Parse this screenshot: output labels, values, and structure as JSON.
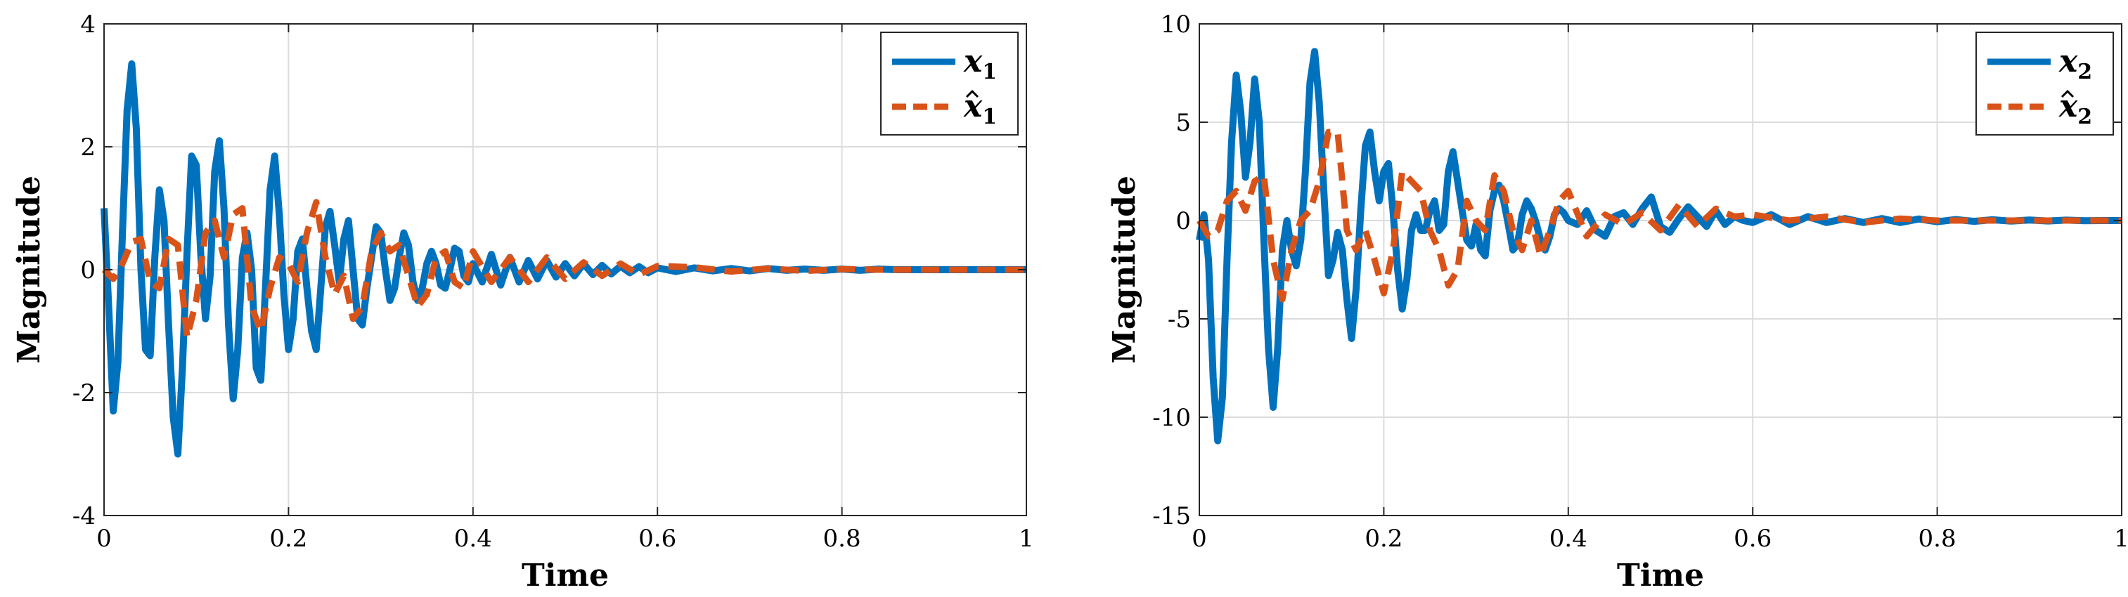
{
  "chart_data": [
    {
      "type": "line",
      "xlabel": "Time",
      "ylabel": "Magnitude",
      "xlim": [
        0,
        1
      ],
      "ylim": [
        -4,
        4
      ],
      "xticks": [
        0,
        0.2,
        0.4,
        0.6,
        0.8,
        1
      ],
      "xtick_labels": [
        "0",
        "0.2",
        "0.4",
        "0.6",
        "0.8",
        "1"
      ],
      "yticks": [
        -4,
        -2,
        0,
        2,
        4
      ],
      "ytick_labels": [
        "-4",
        "-2",
        "0",
        "2",
        "4"
      ],
      "grid": true,
      "legend_position": "top-right",
      "series": [
        {
          "name": "x1",
          "legend_base": "x",
          "legend_sub": "1",
          "hat": false,
          "style": "solid",
          "color": "#0072BD",
          "x": [
            0,
            0.005,
            0.01,
            0.015,
            0.02,
            0.025,
            0.03,
            0.035,
            0.04,
            0.045,
            0.05,
            0.055,
            0.06,
            0.065,
            0.07,
            0.075,
            0.08,
            0.085,
            0.09,
            0.095,
            0.1,
            0.105,
            0.11,
            0.115,
            0.12,
            0.125,
            0.13,
            0.135,
            0.14,
            0.145,
            0.15,
            0.155,
            0.16,
            0.165,
            0.17,
            0.175,
            0.18,
            0.185,
            0.19,
            0.195,
            0.2,
            0.205,
            0.21,
            0.215,
            0.22,
            0.225,
            0.23,
            0.235,
            0.24,
            0.245,
            0.25,
            0.255,
            0.26,
            0.265,
            0.27,
            0.275,
            0.28,
            0.285,
            0.29,
            0.295,
            0.3,
            0.305,
            0.31,
            0.315,
            0.32,
            0.325,
            0.33,
            0.335,
            0.34,
            0.345,
            0.35,
            0.355,
            0.36,
            0.365,
            0.37,
            0.375,
            0.38,
            0.385,
            0.39,
            0.395,
            0.4,
            0.41,
            0.42,
            0.43,
            0.44,
            0.45,
            0.46,
            0.47,
            0.48,
            0.49,
            0.5,
            0.51,
            0.52,
            0.53,
            0.54,
            0.55,
            0.56,
            0.57,
            0.58,
            0.59,
            0.6,
            0.62,
            0.64,
            0.66,
            0.68,
            0.7,
            0.72,
            0.74,
            0.76,
            0.78,
            0.8,
            0.82,
            0.84,
            0.86,
            0.88,
            0.9,
            0.92,
            0.94,
            0.96,
            0.98,
            1.0
          ],
          "y": [
            1.0,
            -0.6,
            -2.3,
            -1.5,
            0.6,
            2.6,
            3.35,
            2.3,
            0.0,
            -1.3,
            -1.4,
            0.2,
            1.3,
            0.8,
            -0.9,
            -2.4,
            -3.0,
            -1.6,
            0.3,
            1.85,
            1.7,
            0.2,
            -0.8,
            -0.1,
            1.6,
            2.1,
            1.0,
            -0.9,
            -2.1,
            -1.3,
            0.2,
            0.6,
            0.0,
            -1.6,
            -1.8,
            -0.3,
            1.3,
            1.85,
            0.9,
            -0.4,
            -1.3,
            -0.8,
            0.3,
            0.5,
            -0.3,
            -1.0,
            -1.3,
            -0.3,
            0.7,
            0.95,
            0.4,
            -0.2,
            0.5,
            0.8,
            0.0,
            -0.8,
            -0.9,
            -0.3,
            0.2,
            0.7,
            0.6,
            0.0,
            -0.5,
            -0.3,
            0.2,
            0.6,
            0.4,
            -0.2,
            -0.5,
            -0.3,
            0.1,
            0.3,
            0.1,
            -0.25,
            -0.3,
            0.0,
            0.35,
            0.3,
            -0.1,
            -0.2,
            0.1,
            -0.2,
            0.25,
            -0.25,
            0.2,
            -0.2,
            0.15,
            -0.15,
            0.15,
            -0.12,
            0.1,
            -0.1,
            0.1,
            -0.08,
            0.07,
            -0.07,
            0.06,
            -0.05,
            0.05,
            -0.05,
            0.03,
            -0.03,
            0.03,
            -0.02,
            0.02,
            -0.02,
            0.02,
            -0.01,
            0.01,
            -0.01,
            0.01,
            -0.01,
            0.01,
            0.0,
            0.0,
            0.0,
            0.0,
            0.0,
            0.0,
            0.0,
            0.0
          ]
        },
        {
          "name": "x1 estimate",
          "legend_base": "x",
          "legend_sub": "1",
          "hat": true,
          "style": "dashed",
          "color": "#D95319",
          "x": [
            0,
            0.01,
            0.02,
            0.03,
            0.04,
            0.05,
            0.06,
            0.07,
            0.08,
            0.09,
            0.1,
            0.11,
            0.12,
            0.13,
            0.14,
            0.15,
            0.16,
            0.17,
            0.18,
            0.19,
            0.2,
            0.21,
            0.22,
            0.23,
            0.24,
            0.25,
            0.26,
            0.27,
            0.28,
            0.29,
            0.3,
            0.31,
            0.32,
            0.33,
            0.34,
            0.35,
            0.36,
            0.37,
            0.38,
            0.39,
            0.4,
            0.42,
            0.44,
            0.46,
            0.48,
            0.5,
            0.52,
            0.54,
            0.56,
            0.58,
            0.6,
            0.64,
            0.68,
            0.72,
            0.76,
            0.8,
            0.84,
            0.88,
            0.92,
            0.96,
            1.0
          ],
          "y": [
            0.0,
            -0.15,
            0.1,
            0.45,
            0.5,
            -0.2,
            -0.3,
            0.5,
            0.4,
            -1.1,
            -0.5,
            0.6,
            0.8,
            0.2,
            0.9,
            1.0,
            -0.6,
            -1.0,
            -0.3,
            0.2,
            0.1,
            -0.2,
            0.6,
            1.1,
            0.2,
            -0.4,
            -0.1,
            -0.8,
            -0.6,
            0.3,
            0.6,
            0.3,
            0.4,
            -0.1,
            -0.6,
            -0.4,
            0.2,
            0.3,
            -0.2,
            -0.3,
            0.3,
            -0.2,
            0.2,
            -0.2,
            0.2,
            -0.15,
            0.12,
            -0.1,
            0.1,
            -0.08,
            0.06,
            0.04,
            -0.03,
            0.02,
            -0.02,
            0.01,
            0.0,
            0.0,
            0.0,
            0.0,
            0.0
          ]
        }
      ]
    },
    {
      "type": "line",
      "xlabel": "Time",
      "ylabel": "Magnitude",
      "xlim": [
        0,
        1
      ],
      "ylim": [
        -15,
        10
      ],
      "xticks": [
        0,
        0.2,
        0.4,
        0.6,
        0.8,
        1
      ],
      "xtick_labels": [
        "0",
        "0.2",
        "0.4",
        "0.6",
        "0.8",
        "1"
      ],
      "yticks": [
        -15,
        -10,
        -5,
        0,
        5,
        10
      ],
      "ytick_labels": [
        "-15",
        "-10",
        "-5",
        "0",
        "5",
        "10"
      ],
      "grid": true,
      "legend_position": "top-right",
      "series": [
        {
          "name": "x2",
          "legend_base": "x",
          "legend_sub": "2",
          "hat": false,
          "style": "solid",
          "color": "#0072BD",
          "x": [
            0,
            0.005,
            0.01,
            0.015,
            0.02,
            0.025,
            0.03,
            0.035,
            0.04,
            0.045,
            0.05,
            0.055,
            0.06,
            0.065,
            0.07,
            0.075,
            0.08,
            0.085,
            0.09,
            0.095,
            0.1,
            0.105,
            0.11,
            0.115,
            0.12,
            0.125,
            0.13,
            0.135,
            0.14,
            0.145,
            0.15,
            0.155,
            0.16,
            0.165,
            0.17,
            0.175,
            0.18,
            0.185,
            0.19,
            0.195,
            0.2,
            0.205,
            0.21,
            0.215,
            0.22,
            0.225,
            0.23,
            0.235,
            0.24,
            0.245,
            0.25,
            0.255,
            0.26,
            0.265,
            0.27,
            0.275,
            0.28,
            0.285,
            0.29,
            0.295,
            0.3,
            0.305,
            0.31,
            0.315,
            0.32,
            0.325,
            0.33,
            0.335,
            0.34,
            0.345,
            0.35,
            0.355,
            0.36,
            0.365,
            0.37,
            0.375,
            0.38,
            0.385,
            0.39,
            0.395,
            0.4,
            0.41,
            0.42,
            0.43,
            0.44,
            0.45,
            0.46,
            0.47,
            0.48,
            0.49,
            0.5,
            0.51,
            0.52,
            0.53,
            0.54,
            0.55,
            0.56,
            0.57,
            0.58,
            0.59,
            0.6,
            0.62,
            0.64,
            0.66,
            0.68,
            0.7,
            0.72,
            0.74,
            0.76,
            0.78,
            0.8,
            0.82,
            0.84,
            0.86,
            0.88,
            0.9,
            0.92,
            0.94,
            0.96,
            0.98,
            1.0
          ],
          "y": [
            -1.0,
            0.3,
            -2.0,
            -8.0,
            -11.2,
            -9.0,
            -2.0,
            4.0,
            7.4,
            5.5,
            2.2,
            4.0,
            7.2,
            5.0,
            -1.0,
            -6.5,
            -9.5,
            -6.5,
            -1.5,
            0.0,
            -1.5,
            -2.3,
            -1.0,
            2.5,
            7.0,
            8.6,
            6.0,
            1.5,
            -2.8,
            -2.0,
            -0.6,
            -1.5,
            -4.0,
            -6.0,
            -3.5,
            0.5,
            3.8,
            4.5,
            2.5,
            1.0,
            2.5,
            2.9,
            0.5,
            -2.5,
            -4.5,
            -3.0,
            -0.5,
            0.3,
            -0.5,
            -0.5,
            0.5,
            1.0,
            -0.5,
            -0.2,
            2.5,
            3.5,
            2.0,
            0.5,
            -1.0,
            -1.3,
            -0.2,
            -1.5,
            -1.8,
            0.5,
            1.5,
            1.8,
            1.0,
            -0.2,
            -1.5,
            -1.2,
            0.3,
            1.0,
            0.6,
            -0.1,
            -1.0,
            -1.5,
            -0.8,
            0.3,
            0.6,
            0.4,
            0.0,
            -0.2,
            0.5,
            -0.5,
            -0.8,
            0.2,
            0.4,
            -0.2,
            0.6,
            1.2,
            -0.3,
            -0.6,
            0.1,
            0.7,
            0.2,
            -0.3,
            0.5,
            -0.2,
            0.2,
            0.0,
            -0.1,
            0.3,
            -0.2,
            0.2,
            -0.1,
            0.1,
            -0.1,
            0.1,
            -0.1,
            0.08,
            -0.06,
            0.05,
            -0.04,
            0.04,
            -0.03,
            0.03,
            -0.02,
            0.02,
            -0.01,
            0.0,
            0.0
          ]
        },
        {
          "name": "x2 estimate",
          "legend_base": "x",
          "legend_sub": "2",
          "hat": true,
          "style": "dashed",
          "color": "#D95319",
          "x": [
            0,
            0.01,
            0.02,
            0.03,
            0.04,
            0.05,
            0.06,
            0.07,
            0.08,
            0.09,
            0.1,
            0.11,
            0.12,
            0.13,
            0.14,
            0.15,
            0.16,
            0.17,
            0.18,
            0.19,
            0.2,
            0.21,
            0.22,
            0.23,
            0.24,
            0.25,
            0.26,
            0.27,
            0.28,
            0.29,
            0.3,
            0.31,
            0.32,
            0.33,
            0.34,
            0.35,
            0.36,
            0.37,
            0.38,
            0.39,
            0.4,
            0.42,
            0.44,
            0.46,
            0.48,
            0.5,
            0.52,
            0.54,
            0.56,
            0.58,
            0.6,
            0.64,
            0.68,
            0.72,
            0.76,
            0.8,
            0.84,
            0.88,
            0.92,
            0.96,
            1.0
          ],
          "y": [
            0.0,
            -0.8,
            -0.5,
            1.0,
            1.5,
            0.5,
            2.0,
            2.3,
            -2.0,
            -4.0,
            -1.5,
            0.0,
            0.5,
            2.0,
            4.5,
            4.5,
            -0.5,
            -1.5,
            -0.5,
            -2.0,
            -3.7,
            -1.5,
            2.5,
            2.0,
            1.5,
            -0.5,
            -1.5,
            -3.3,
            -2.5,
            1.0,
            0.0,
            -0.5,
            2.3,
            1.5,
            -0.5,
            -1.5,
            0.0,
            -1.8,
            -0.5,
            1.0,
            1.5,
            -0.8,
            0.3,
            -0.2,
            0.4,
            -0.5,
            0.8,
            -0.3,
            0.6,
            0.2,
            0.3,
            0.0,
            0.2,
            -0.1,
            0.1,
            0.0,
            0.0,
            0.0,
            0.0,
            0.0,
            0.0
          ]
        }
      ]
    }
  ]
}
